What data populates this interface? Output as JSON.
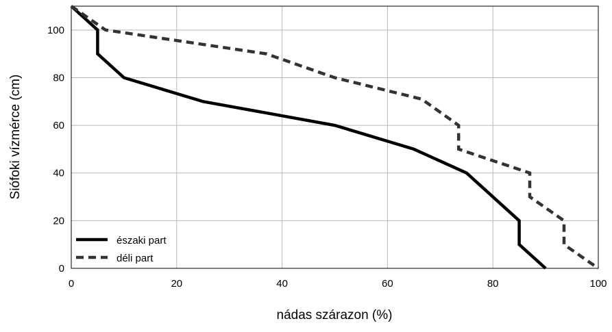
{
  "chart_data": {
    "type": "line",
    "xlabel": "nádas szárazon (%)",
    "ylabel": "Siófoki vízmérce (cm)",
    "xlim": [
      0,
      100
    ],
    "ylim": [
      0,
      110
    ],
    "x_ticks": [
      0,
      20,
      40,
      60,
      80,
      100
    ],
    "y_ticks": [
      0,
      20,
      40,
      60,
      80,
      100
    ],
    "x_tick_labels": [
      "0",
      "20",
      "40",
      "60",
      "80",
      "100"
    ],
    "y_tick_labels": [
      "0",
      "20",
      "40",
      "60",
      "80",
      "100"
    ],
    "grid": true,
    "legend_position": "bottom-left",
    "series": [
      {
        "name": "északi part",
        "style": "solid",
        "color": "#000000",
        "points": [
          {
            "x": 0,
            "y": 110
          },
          {
            "x": 5,
            "y": 100
          },
          {
            "x": 5,
            "y": 90
          },
          {
            "x": 10,
            "y": 80
          },
          {
            "x": 25,
            "y": 70
          },
          {
            "x": 50,
            "y": 60
          },
          {
            "x": 65,
            "y": 50
          },
          {
            "x": 75,
            "y": 40
          },
          {
            "x": 85,
            "y": 20
          },
          {
            "x": 85,
            "y": 10
          },
          {
            "x": 90,
            "y": 0
          }
        ]
      },
      {
        "name": "déli part",
        "style": "dashed",
        "color": "#333333",
        "points": [
          {
            "x": 0,
            "y": 110
          },
          {
            "x": 6.5,
            "y": 100
          },
          {
            "x": 37,
            "y": 90
          },
          {
            "x": 50,
            "y": 80
          },
          {
            "x": 66.5,
            "y": 71
          },
          {
            "x": 73.5,
            "y": 60
          },
          {
            "x": 73.5,
            "y": 50
          },
          {
            "x": 87,
            "y": 40
          },
          {
            "x": 87,
            "y": 30
          },
          {
            "x": 93.5,
            "y": 20
          },
          {
            "x": 93.5,
            "y": 10
          },
          {
            "x": 100,
            "y": 0
          }
        ]
      }
    ]
  }
}
